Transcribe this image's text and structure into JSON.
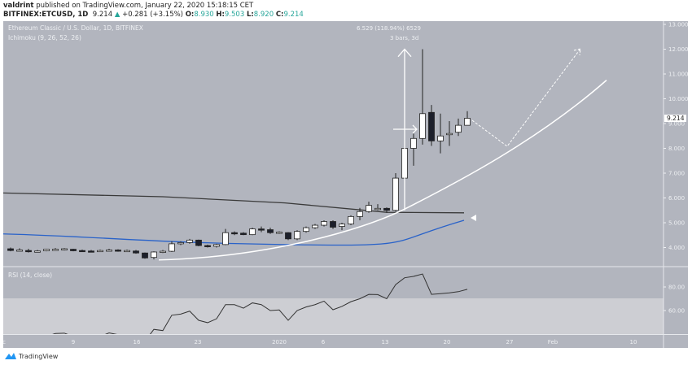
{
  "header": {
    "publisher": "valdrint",
    "published_text": "published on TradingView.com, January 22, 2020 15:18:15 CET",
    "symbol": "BITFINEX:ETCUSD, 1D",
    "last": "9.214",
    "change": "+0.281 (+3.15%)",
    "open_label": "O:",
    "open": "8.930",
    "high_label": "H:",
    "high": "9.503",
    "low_label": "L:",
    "low": "8.920",
    "close_label": "C:",
    "close": "9.214"
  },
  "legend": {
    "title": "Ethereum Classic / U.S. Dollar, 1D, BITFINEX",
    "indicator": "Ichimoku (9, 26, 52, 26)",
    "rsi": "RSI (14, close)"
  },
  "measure": {
    "line1": "6.529 (118.94%) 6529",
    "line2": "3 bars, 3d"
  },
  "last_price_label": "9.214",
  "colors": {
    "background": "#b2b5be",
    "rsi_band": "#cdced3",
    "bull": "#ffffff",
    "bear": "#1c1f2b",
    "lagging_line": "#3a3a3a",
    "base_line": "#2962c9",
    "drawing": "#ffffff"
  },
  "footer": {
    "brand": "TradingView"
  },
  "chart_data": [
    {
      "type": "candlestick",
      "price_axis_ticks": [
        "13.000",
        "12.000",
        "11.000",
        "10.000",
        "9.000",
        "8.000",
        "7.000",
        "6.000",
        "5.000",
        "4.000"
      ],
      "ylim": [
        3.2,
        13.1
      ],
      "time_axis_ticks": [
        "c",
        "9",
        "16",
        "23",
        "2020",
        "6",
        "13",
        "20",
        "27",
        "Feb",
        "10"
      ],
      "start_date": "2019-12-02",
      "ohlc": [
        [
          3.95,
          4.0,
          3.85,
          3.88
        ],
        [
          3.9,
          3.97,
          3.85,
          3.9
        ],
        [
          3.88,
          3.95,
          3.8,
          3.83
        ],
        [
          3.85,
          3.9,
          3.82,
          3.86
        ],
        [
          3.87,
          3.95,
          3.85,
          3.93
        ],
        [
          3.92,
          3.98,
          3.88,
          3.93
        ],
        [
          3.93,
          3.98,
          3.88,
          3.95
        ],
        [
          3.93,
          3.95,
          3.85,
          3.87
        ],
        [
          3.88,
          3.92,
          3.82,
          3.86
        ],
        [
          3.86,
          3.9,
          3.84,
          3.85
        ],
        [
          3.85,
          3.92,
          3.83,
          3.88
        ],
        [
          3.88,
          3.95,
          3.86,
          3.9
        ],
        [
          3.9,
          3.93,
          3.83,
          3.86
        ],
        [
          3.87,
          3.92,
          3.84,
          3.88
        ],
        [
          3.86,
          3.9,
          3.75,
          3.78
        ],
        [
          3.78,
          3.8,
          3.55,
          3.58
        ],
        [
          3.6,
          3.85,
          3.52,
          3.82
        ],
        [
          3.82,
          3.9,
          3.78,
          3.85
        ],
        [
          3.85,
          4.25,
          3.82,
          4.15
        ],
        [
          4.15,
          4.25,
          4.1,
          4.2
        ],
        [
          4.2,
          4.35,
          4.15,
          4.3
        ],
        [
          4.3,
          4.32,
          4.05,
          4.08
        ],
        [
          4.08,
          4.12,
          4.0,
          4.05
        ],
        [
          4.05,
          4.15,
          4.0,
          4.12
        ],
        [
          4.12,
          4.75,
          4.1,
          4.6
        ],
        [
          4.6,
          4.65,
          4.5,
          4.55
        ],
        [
          4.58,
          4.62,
          4.5,
          4.52
        ],
        [
          4.52,
          4.8,
          4.5,
          4.75
        ],
        [
          4.75,
          4.85,
          4.62,
          4.7
        ],
        [
          4.72,
          4.8,
          4.55,
          4.6
        ],
        [
          4.6,
          4.65,
          4.55,
          4.62
        ],
        [
          4.6,
          4.62,
          4.3,
          4.35
        ],
        [
          4.35,
          4.7,
          4.3,
          4.65
        ],
        [
          4.65,
          4.85,
          4.6,
          4.8
        ],
        [
          4.8,
          4.95,
          4.75,
          4.9
        ],
        [
          4.9,
          5.1,
          4.85,
          5.05
        ],
        [
          5.05,
          5.1,
          4.75,
          4.82
        ],
        [
          4.85,
          5.0,
          4.7,
          4.95
        ],
        [
          4.95,
          5.3,
          4.9,
          5.25
        ],
        [
          5.25,
          5.6,
          5.1,
          5.45
        ],
        [
          5.45,
          5.85,
          5.4,
          5.7
        ],
        [
          5.55,
          5.75,
          5.5,
          5.58
        ],
        [
          5.58,
          5.62,
          5.4,
          5.5
        ],
        [
          5.5,
          7.0,
          5.45,
          6.8
        ],
        [
          6.8,
          8.1,
          6.6,
          8.0
        ],
        [
          8.0,
          8.6,
          7.3,
          8.4
        ],
        [
          8.4,
          12.0,
          8.15,
          9.4
        ],
        [
          9.45,
          9.75,
          8.1,
          8.3
        ],
        [
          8.3,
          9.4,
          7.8,
          8.5
        ],
        [
          8.55,
          9.1,
          8.1,
          8.6
        ],
        [
          8.65,
          9.2,
          8.5,
          8.93
        ],
        [
          8.93,
          9.5,
          8.92,
          9.214
        ]
      ]
    },
    {
      "type": "line",
      "title": "RSI (14, close)",
      "axis_ticks": [
        "80.00",
        "60.00"
      ],
      "overbought_band": [
        70,
        100
      ],
      "start_date": "2019-12-02",
      "values": [
        38,
        37,
        38,
        38,
        38,
        40.5,
        40.8,
        38,
        37,
        37,
        38,
        41,
        39.5,
        37,
        35,
        34,
        44,
        43,
        56,
        57,
        59.5,
        51.7,
        49.7,
        53,
        65,
        65,
        62,
        66.5,
        65,
        60,
        60.5,
        51.7,
        60,
        63,
        65,
        68,
        60.7,
        63.5,
        67.5,
        70,
        73.7,
        73.5,
        70,
        82,
        87.8,
        89,
        91,
        73.7,
        74.3,
        75,
        76,
        78
      ]
    }
  ]
}
